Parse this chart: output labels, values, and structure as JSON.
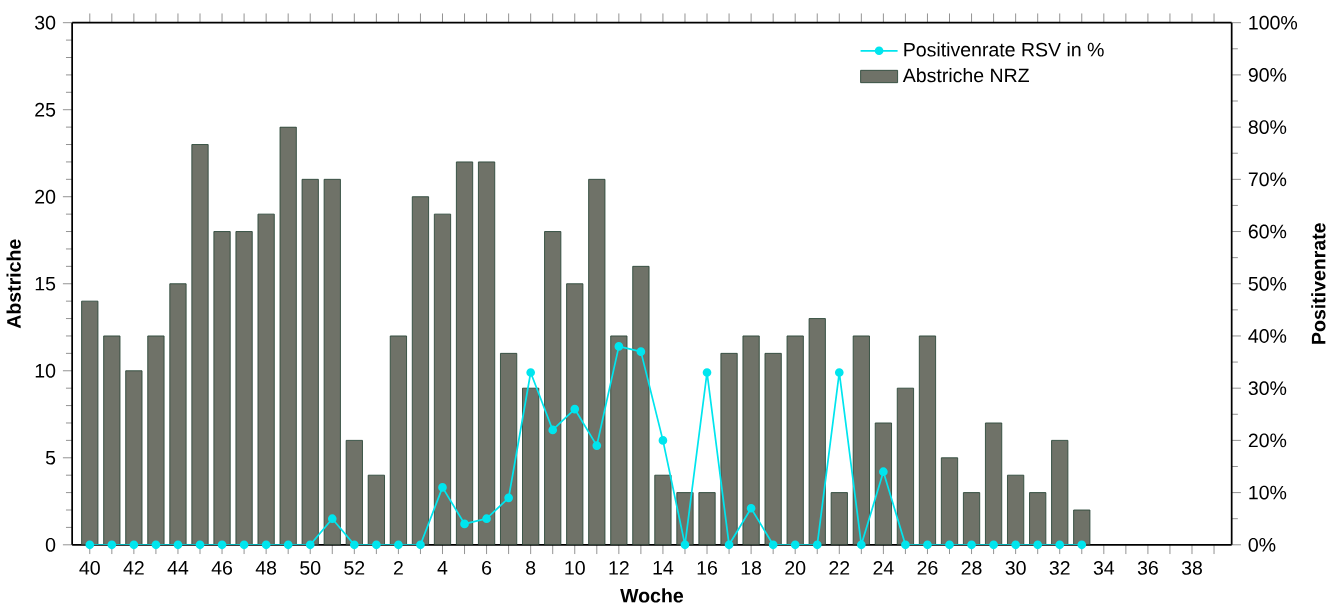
{
  "chart_data": {
    "type": "bar",
    "xlabel": "Woche",
    "ylabel": "Abstriche",
    "y2label": "Positivenrate",
    "legend": "top right",
    "categories": [
      "40",
      null,
      "42",
      null,
      "44",
      null,
      "46",
      null,
      "48",
      null,
      "50",
      null,
      "52",
      null,
      "2",
      null,
      "4",
      null,
      "6",
      null,
      "8",
      null,
      "10",
      null,
      "12",
      null,
      "14",
      null,
      "16",
      null,
      "18",
      null,
      "20",
      null,
      "22",
      null,
      "24",
      null,
      "26",
      null,
      "28",
      null,
      "30",
      null,
      "32",
      null,
      "34",
      null,
      "36",
      null,
      "38",
      null
    ],
    "ylim": [
      0,
      30
    ],
    "yticks": [
      0,
      5,
      10,
      15,
      20,
      25,
      30
    ],
    "y2lim": [
      0,
      100
    ],
    "y2ticks": [
      {
        "value": 0,
        "label": "0%"
      },
      {
        "value": 10,
        "label": "10%"
      },
      {
        "value": 20,
        "label": "20%"
      },
      {
        "value": 30,
        "label": "30%"
      },
      {
        "value": 40,
        "label": "40%"
      },
      {
        "value": 50,
        "label": "50%"
      },
      {
        "value": 60,
        "label": "60%"
      },
      {
        "value": 70,
        "label": "70%"
      },
      {
        "value": 80,
        "label": "80%"
      },
      {
        "value": 90,
        "label": "90%"
      },
      {
        "value": 100,
        "label": "100%"
      }
    ],
    "series": [
      {
        "name": "Positivenrate RSV in %",
        "type": "line",
        "axis": "y2",
        "color": "#00e5ee",
        "marker": "circle",
        "values": [
          0,
          0,
          0,
          0,
          0,
          0,
          0,
          0,
          0,
          0,
          0,
          5,
          0,
          0,
          0,
          0,
          11,
          4,
          5,
          9,
          33,
          22,
          26,
          19,
          38,
          37,
          20,
          0,
          33,
          0,
          7,
          0,
          0,
          0,
          33,
          0,
          14,
          0,
          0,
          0,
          0,
          0,
          0,
          0,
          0,
          0,
          null,
          null,
          null,
          null,
          null,
          null
        ]
      },
      {
        "name": "Abstriche NRZ",
        "color": "#6f7268",
        "values": [
          14,
          12,
          10,
          12,
          15,
          23,
          18,
          18,
          19,
          24,
          21,
          21,
          6,
          4,
          12,
          20,
          19,
          22,
          22,
          11,
          9,
          18,
          15,
          21,
          12,
          16,
          4,
          3,
          3,
          11,
          12,
          11,
          12,
          13,
          3,
          12,
          7,
          9,
          12,
          5,
          3,
          7,
          4,
          3,
          6,
          2,
          null,
          null,
          null,
          null,
          null,
          null
        ]
      }
    ]
  }
}
